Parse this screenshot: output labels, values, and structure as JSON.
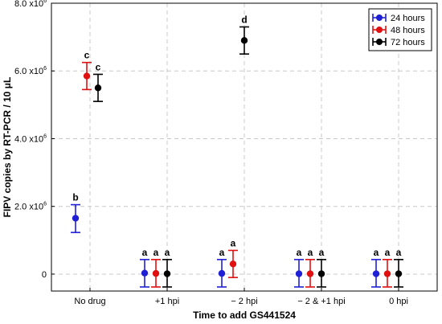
{
  "chart_data": {
    "type": "scatter",
    "xlabel": "Time to add GS441524",
    "ylabel": "FIPV copies by RT-PCR / 10 μL",
    "categories": [
      "No drug",
      "+1 hpi",
      "− 2 hpi",
      "− 2 & +1 hpi",
      "0 hpi"
    ],
    "ylim": [
      -500000,
      8000000
    ],
    "yticks": [
      {
        "value": 0,
        "base": "0",
        "exp": ""
      },
      {
        "value": 2000000,
        "base": "2.0 x10",
        "exp": "6"
      },
      {
        "value": 4000000,
        "base": "4.0 x10",
        "exp": "6"
      },
      {
        "value": 6000000,
        "base": "6.0 x10",
        "exp": "6"
      },
      {
        "value": 8000000,
        "base": "8.0 x10",
        "exp": "6"
      }
    ],
    "grid": true,
    "legend_position": "top-right",
    "series": [
      {
        "name": "24 hours",
        "color": "#1f1fd6",
        "points": [
          {
            "category": 0,
            "y": 1650000,
            "low": 1230000,
            "high": 2050000,
            "label": "b"
          },
          {
            "category": 1,
            "y": 30000,
            "low": -380000,
            "high": 430000,
            "label": "a"
          },
          {
            "category": 2,
            "y": 20000,
            "low": -380000,
            "high": 430000,
            "label": "a"
          },
          {
            "category": 3,
            "y": 10000,
            "low": -380000,
            "high": 430000,
            "label": "a"
          },
          {
            "category": 4,
            "y": 10000,
            "low": -380000,
            "high": 430000,
            "label": "a"
          }
        ]
      },
      {
        "name": "48 hours",
        "color": "#e01010",
        "points": [
          {
            "category": 0,
            "y": 5850000,
            "low": 5450000,
            "high": 6250000,
            "label": "c"
          },
          {
            "category": 1,
            "y": 20000,
            "low": -380000,
            "high": 430000,
            "label": "a"
          },
          {
            "category": 2,
            "y": 300000,
            "low": -100000,
            "high": 700000,
            "label": "a"
          },
          {
            "category": 3,
            "y": 10000,
            "low": -380000,
            "high": 430000,
            "label": "a"
          },
          {
            "category": 4,
            "y": 10000,
            "low": -380000,
            "high": 430000,
            "label": "a"
          }
        ]
      },
      {
        "name": "72 hours",
        "color": "#000000",
        "points": [
          {
            "category": 0,
            "y": 5500000,
            "low": 5100000,
            "high": 5900000,
            "label": "c"
          },
          {
            "category": 1,
            "y": 10000,
            "low": -380000,
            "high": 430000,
            "label": "a"
          },
          {
            "category": 2,
            "y": 6900000,
            "low": 6500000,
            "high": 7300000,
            "label": "d"
          },
          {
            "category": 3,
            "y": 10000,
            "low": -380000,
            "high": 430000,
            "label": "a"
          },
          {
            "category": 4,
            "y": 10000,
            "low": -380000,
            "high": 430000,
            "label": "a"
          }
        ]
      }
    ]
  }
}
